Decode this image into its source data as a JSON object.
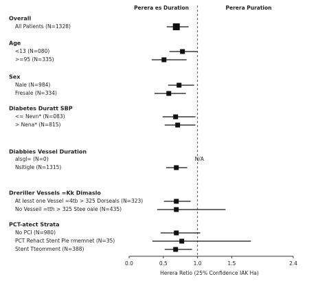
{
  "chart_data": {
    "type": "forest",
    "left_heading": "Perera es Duration",
    "right_heading": "Perera Puration",
    "x_label": "Herera Retio (25% Confidence IAK Ha)",
    "xlim": [
      0,
      2.4
    ],
    "xticks": [
      {
        "value": 0,
        "label": "0.0"
      },
      0.5,
      {
        "value": 1,
        "label": "1.0"
      },
      1.5,
      2.4
    ],
    "reference_line": 1,
    "color": "#111111",
    "groups": [
      {
        "title": "Overall",
        "categories": [
          "All Patients (N=1328)"
        ],
        "values": [
          0.69
        ],
        "lower": [
          0.55
        ],
        "upper": [
          0.87
        ]
      },
      {
        "title": "Age",
        "categories": [
          "<13 (N=080)",
          ">=95 (N=335)"
        ],
        "values": [
          0.78,
          0.51
        ],
        "lower": [
          0.59,
          0.33
        ],
        "upper": [
          1.0,
          0.84
        ]
      },
      {
        "title": "Sex",
        "categories": [
          "Nale (N=984)",
          "Fresale (N=334)"
        ],
        "values": [
          0.73,
          0.58
        ],
        "lower": [
          0.57,
          0.37
        ],
        "upper": [
          0.95,
          0.83
        ]
      },
      {
        "title": "Diabetes Duratt SBP",
        "categories": [
          "<= Nevn* (N=083)",
          "> Nena* (N=815)"
        ],
        "values": [
          0.68,
          0.71
        ],
        "lower": [
          0.49,
          0.52
        ],
        "upper": [
          0.97,
          0.97
        ]
      },
      {
        "title": "Diabbies Vessel Duration",
        "categories": [
          "alsgl= (N=0)",
          "Nsltigle (N=1315)"
        ],
        "values": [
          null,
          0.69
        ],
        "lower": [
          null,
          0.54
        ],
        "upper": [
          null,
          0.85
        ],
        "value_labels": [
          "N/A",
          null
        ]
      },
      {
        "title": "Dreriller Vessels =Kk Dimaslo",
        "categories": [
          "At Iesst one Vessel =4tb > 325 Dorseals (N=323)",
          "No Vesseil =tth > 325 Stee oale (N=435)"
        ],
        "values": [
          0.69,
          0.69
        ],
        "lower": [
          0.51,
          0.41
        ],
        "upper": [
          0.9,
          1.41
        ]
      },
      {
        "title": "PCT-atect Strata",
        "categories": [
          "No PCI (N=980)",
          "PCT Rehact Stent Ple rmemnet (N=35)",
          "Stent Tteomment (N=388)"
        ],
        "values": [
          0.69,
          0.77,
          0.68
        ],
        "lower": [
          0.46,
          0.34,
          0.52
        ],
        "upper": [
          1.04,
          1.78,
          0.92
        ]
      }
    ]
  }
}
